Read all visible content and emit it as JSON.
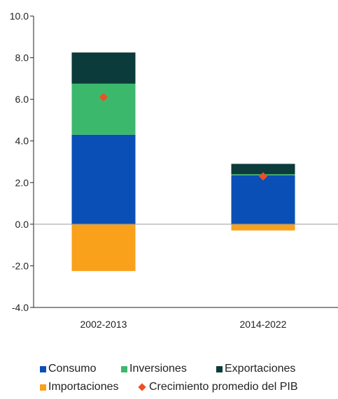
{
  "chart_data": {
    "type": "bar",
    "stacked": true,
    "categories": [
      "2002-2013",
      "2014-2022"
    ],
    "ylim": [
      -4.0,
      10.0
    ],
    "yticks": [
      "-4.0",
      "-2.0",
      "0.0",
      "2.0",
      "4.0",
      "6.0",
      "8.0",
      "10.0"
    ],
    "series": [
      {
        "name": "Consumo",
        "color": "#0a4fb5",
        "values": [
          4.3,
          2.35
        ]
      },
      {
        "name": "Inversiones",
        "color": "#3cb86c",
        "values": [
          2.45,
          0.05
        ]
      },
      {
        "name": "Exportaciones",
        "color": "#0b3b3a",
        "values": [
          1.5,
          0.5
        ]
      },
      {
        "name": "Importaciones",
        "color": "#f9a11b",
        "values": [
          -2.25,
          -0.3
        ]
      }
    ],
    "markers": {
      "name": "Crecimiento promedio del PIB",
      "color": "#f04e23",
      "values": [
        6.1,
        2.3
      ]
    }
  }
}
